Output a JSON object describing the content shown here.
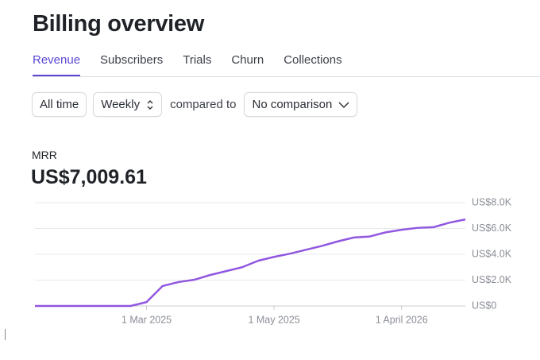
{
  "header": {
    "title": "Billing overview"
  },
  "tabs": [
    "Revenue",
    "Subscribers",
    "Trials",
    "Churn",
    "Collections"
  ],
  "filters": {
    "range": "All time",
    "interval": "Weekly",
    "compare_label": "compared to",
    "comparison": "No comparison"
  },
  "metric": {
    "label": "MRR",
    "value": "US$7,009.61"
  },
  "chart_data": {
    "type": "line",
    "categories": [
      null,
      null,
      null,
      null,
      null,
      null,
      null,
      "1 Mar 2025",
      null,
      null,
      null,
      null,
      null,
      null,
      null,
      "1 May 2025",
      null,
      null,
      null,
      null,
      null,
      null,
      null,
      "1 April 2026",
      null,
      null,
      null,
      null
    ],
    "values": [
      0,
      0,
      0,
      0,
      0,
      0,
      0,
      300,
      1540,
      1850,
      2030,
      2400,
      2700,
      3000,
      3500,
      3800,
      4050,
      4350,
      4650,
      5000,
      5300,
      5380,
      5700,
      5900,
      6050,
      6100,
      6450,
      6700
    ],
    "color": "#9157e0",
    "ylim": [
      0,
      8000
    ],
    "yticks": [
      {
        "value": 0,
        "label": "US$0"
      },
      {
        "value": 2000,
        "label": "US$2.0K"
      },
      {
        "value": 4000,
        "label": "US$4.0K"
      },
      {
        "value": 6000,
        "label": "US$6.0K"
      },
      {
        "value": 8000,
        "label": "US$8.0K"
      }
    ],
    "grid": true
  }
}
